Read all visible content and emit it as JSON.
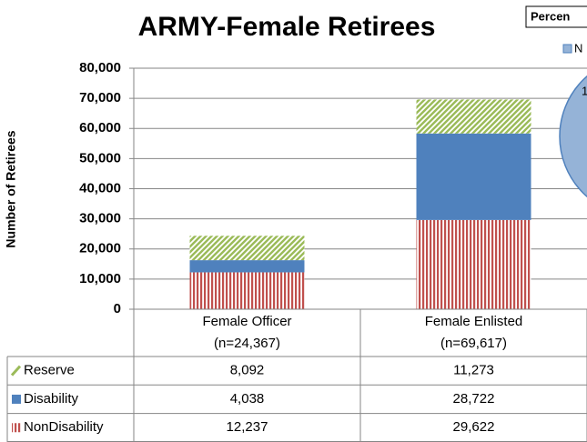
{
  "chart_data": {
    "type": "stacked_bar",
    "title": "ARMY-Female Retirees",
    "ylabel": "Number of Retirees",
    "categories": [
      "Female Officer",
      "Female Enlisted"
    ],
    "category_notes": [
      "(n=24,367)",
      "(n=69,617)"
    ],
    "series": [
      {
        "name": "Reserve",
        "color": "#9bbb59",
        "pattern": "diagonal",
        "values": [
          8092,
          11273
        ],
        "value_labels": [
          "8,092",
          "11,273"
        ]
      },
      {
        "name": "Disability",
        "color": "#4f81bd",
        "pattern": "solid",
        "values": [
          4038,
          28722
        ],
        "value_labels": [
          "4,038",
          "28,722"
        ]
      },
      {
        "name": "NonDisability",
        "color": "#c0504d",
        "pattern": "vertical",
        "values": [
          12237,
          29622
        ],
        "value_labels": [
          "12,237",
          "29,622"
        ]
      }
    ],
    "ylim": [
      0,
      80000
    ],
    "yticks": [
      0,
      {
        "value": 10000,
        "label": "10,000"
      },
      {
        "value": 20000,
        "label": "20,000"
      },
      {
        "value": 30000,
        "label": "30,000"
      },
      {
        "value": 40000,
        "label": "40,000"
      },
      {
        "value": 50000,
        "label": "50,000"
      },
      {
        "value": 60000,
        "label": "60,000"
      },
      {
        "value": 70000,
        "label": "70,000"
      },
      {
        "value": 80000,
        "label": "80,000"
      }
    ],
    "grid": true,
    "pie_title": "Percen",
    "pie_legend": "N",
    "pie_label": "1"
  }
}
